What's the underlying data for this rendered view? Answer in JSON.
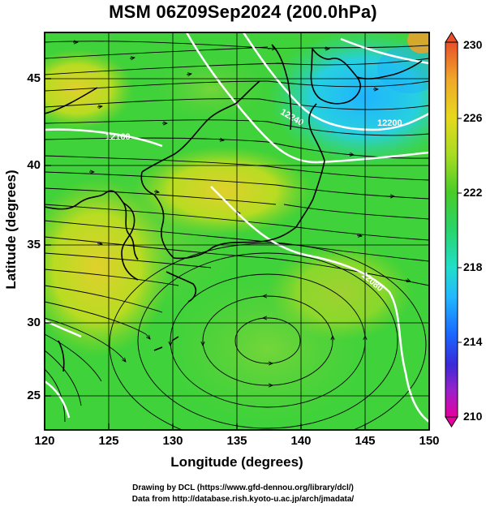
{
  "title": "MSM 06Z09Sep2024 (200.0hPa)",
  "x_axis": {
    "label": "Longitude (degrees)",
    "ticks": [
      "120",
      "125",
      "130",
      "135",
      "140",
      "145",
      "150"
    ],
    "range": [
      120,
      150
    ]
  },
  "y_axis": {
    "label": "Latitude (degrees)",
    "ticks": [
      "25",
      "30",
      "35",
      "40",
      "45"
    ],
    "range": [
      22.4,
      47.6
    ]
  },
  "colorbar": {
    "ticks": [
      "230",
      "226",
      "222",
      "218",
      "214",
      "210"
    ],
    "range": [
      210,
      230
    ],
    "palette": [
      "#e6009f",
      "#9a22c8",
      "#3a2ad8",
      "#1a66ff",
      "#22b8ff",
      "#22dfc8",
      "#28d46a",
      "#4acc28",
      "#a8dc22",
      "#e6d81e",
      "#f0a82a",
      "#e8502a"
    ]
  },
  "contour_labels": [
    "12240",
    "12200",
    "12160",
    "12080"
  ],
  "colors": {
    "frame": "#000000",
    "streamline": "#000000",
    "contour": "#ffffff",
    "coast": "#000000"
  },
  "credits": [
    "Drawing by DCL (https://www.gfd-dennou.org/library/dcl/)",
    "Data from http://database.rish.kyoto-u.ac.jp/arch/jmadata/"
  ]
}
